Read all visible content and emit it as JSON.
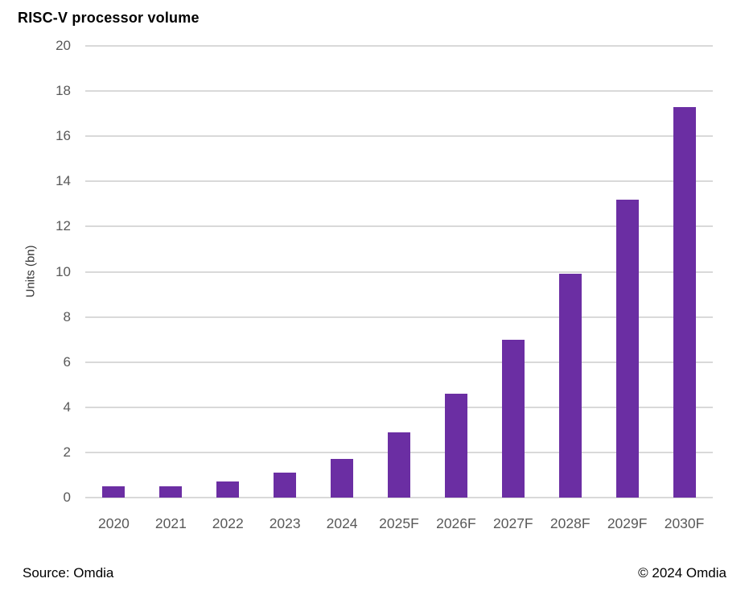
{
  "title": "RISC-V processor volume",
  "footer": {
    "source": "Source: Omdia",
    "copyright": "© 2024 Omdia"
  },
  "colors": {
    "bar": "#6b2ea3",
    "gridline": "#d9d9d9",
    "tick_text": "#595959",
    "title_text": "#000000"
  },
  "chart_data": {
    "type": "bar",
    "title": "RISC-V processor volume",
    "categories": [
      "2020",
      "2021",
      "2022",
      "2023",
      "2024",
      "2025F",
      "2026F",
      "2027F",
      "2028F",
      "2029F",
      "2030F"
    ],
    "values": [
      0.5,
      0.5,
      0.7,
      1.1,
      1.7,
      2.9,
      4.6,
      7.0,
      9.9,
      13.2,
      17.3
    ],
    "xlabel": "",
    "ylabel": "Units (bn)",
    "ylim": [
      0,
      20
    ],
    "ytick_step": 2,
    "grid": "horizontal",
    "legend": "none"
  }
}
